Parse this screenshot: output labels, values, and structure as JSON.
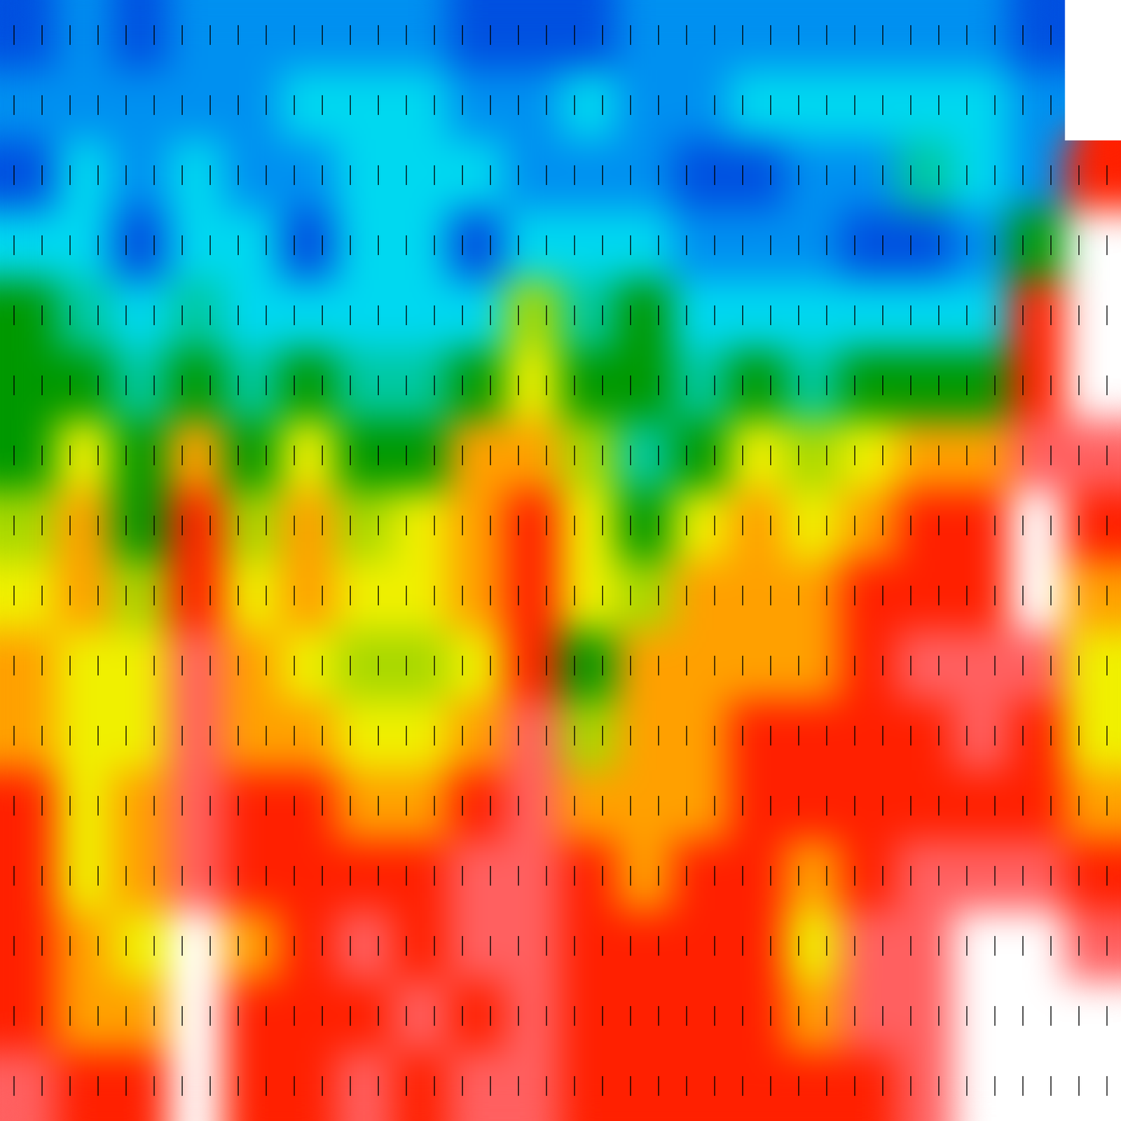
{
  "chart_data": {
    "type": "heatmap",
    "tick_labels": false,
    "zlim": [
      0,
      11
    ],
    "values": [
      [
        1,
        2,
        1,
        2,
        2,
        2,
        2,
        2,
        1,
        1,
        1,
        2,
        2,
        2,
        2,
        2,
        2,
        2,
        1,
        null
      ],
      [
        2,
        2,
        2,
        2,
        2,
        3,
        3,
        3,
        2,
        2,
        3,
        2,
        2,
        3,
        3,
        3,
        3,
        3,
        2,
        null
      ],
      [
        1,
        3,
        2,
        3,
        2,
        2,
        3,
        3,
        3,
        2,
        2,
        2,
        1,
        1,
        2,
        2,
        4,
        3,
        2,
        9
      ],
      [
        3,
        3,
        1,
        3,
        3,
        1,
        3,
        3,
        1,
        3,
        3,
        3,
        2,
        2,
        2,
        1,
        1,
        2,
        5,
        11
      ],
      [
        5,
        4,
        3,
        4,
        3,
        3,
        3,
        3,
        3,
        6,
        4,
        5,
        3,
        3,
        3,
        3,
        3,
        3,
        9,
        11
      ],
      [
        5,
        5,
        4,
        5,
        4,
        5,
        4,
        4,
        5,
        7,
        5,
        5,
        4,
        5,
        4,
        5,
        5,
        5,
        9,
        11
      ],
      [
        5,
        7,
        5,
        8,
        5,
        7,
        5,
        5,
        8,
        8,
        6,
        4,
        5,
        7,
        6,
        7,
        8,
        8,
        10,
        10
      ],
      [
        6,
        8,
        5,
        9,
        6,
        8,
        6,
        7,
        8,
        9,
        7,
        5,
        7,
        8,
        7,
        8,
        9,
        9,
        11,
        9
      ],
      [
        7,
        8,
        6,
        9,
        7,
        8,
        7,
        7,
        8,
        9,
        7,
        6,
        8,
        8,
        8,
        9,
        9,
        9,
        11,
        8
      ],
      [
        8,
        7,
        7,
        10,
        8,
        7,
        6,
        6,
        7,
        9,
        5,
        8,
        8,
        8,
        8,
        9,
        10,
        10,
        10,
        7
      ],
      [
        8,
        7,
        7,
        10,
        8,
        8,
        7,
        7,
        8,
        10,
        6,
        8,
        8,
        9,
        9,
        9,
        9,
        10,
        9,
        7
      ],
      [
        9,
        7,
        8,
        10,
        9,
        9,
        8,
        8,
        9,
        10,
        8,
        8,
        8,
        9,
        9,
        9,
        9,
        9,
        9,
        8
      ],
      [
        9,
        7,
        8,
        10,
        9,
        9,
        9,
        9,
        10,
        10,
        9,
        8,
        9,
        9,
        8,
        9,
        10,
        10,
        10,
        9
      ],
      [
        9,
        8,
        7,
        11,
        8,
        9,
        10,
        9,
        10,
        10,
        9,
        9,
        9,
        9,
        7,
        10,
        10,
        11,
        11,
        10
      ],
      [
        9,
        8,
        8,
        11,
        9,
        9,
        9,
        10,
        9,
        10,
        9,
        9,
        9,
        9,
        8,
        10,
        10,
        11,
        11,
        11
      ],
      [
        10,
        9,
        9,
        11,
        9,
        9,
        10,
        9,
        10,
        10,
        9,
        9,
        9,
        9,
        9,
        9,
        10,
        11,
        11,
        11
      ]
    ]
  }
}
